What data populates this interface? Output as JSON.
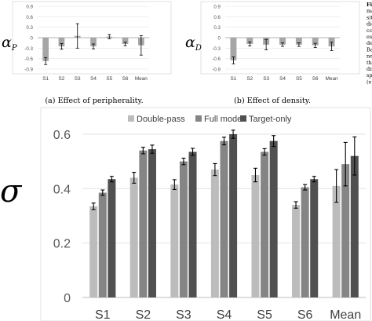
{
  "chart_data": [
    {
      "type": "bar",
      "ylabel": "αP",
      "categories": [
        "S1",
        "S2",
        "S3",
        "S4",
        "S5",
        "S6",
        "Mean"
      ],
      "ylim": [
        -0.9,
        0.9
      ],
      "yticks": [
        "0.9",
        "0.6",
        "0.3",
        "0",
        "-0.3",
        "-0.6",
        "-0.9"
      ],
      "values": [
        -0.67,
        -0.25,
        0.05,
        -0.25,
        0.03,
        -0.18,
        -0.22
      ],
      "err": [
        0.1,
        0.08,
        0.35,
        0.07,
        0.06,
        0.05,
        0.28
      ],
      "caption": "(a) Effect of peripherality."
    },
    {
      "type": "bar",
      "ylabel": "αD",
      "categories": [
        "S1",
        "S2",
        "S3",
        "S4",
        "S5",
        "S6",
        "Mean"
      ],
      "ylim": [
        -0.9,
        0.9
      ],
      "yticks": [
        "0.9",
        "0.6",
        "0.3",
        "0",
        "-0.3",
        "-0.6",
        "-0.9"
      ],
      "values": [
        -0.65,
        -0.18,
        -0.2,
        -0.2,
        -0.2,
        -0.22,
        -0.25
      ],
      "err": [
        0.1,
        0.06,
        0.15,
        0.05,
        0.05,
        0.06,
        0.12
      ],
      "caption": "(b) Effect of density."
    },
    {
      "type": "bar",
      "ylabel": "σ",
      "categories": [
        "S1",
        "S2",
        "S3",
        "S4",
        "S5",
        "S6",
        "Mean"
      ],
      "ylim": [
        0,
        0.65
      ],
      "yticks": [
        "0.6",
        "0.4",
        "0.2",
        "0"
      ],
      "series": [
        {
          "name": "Double-pass",
          "color": "#bcbcbc",
          "values": [
            0.335,
            0.44,
            0.415,
            0.47,
            0.45,
            0.34,
            0.41
          ],
          "err": [
            0.012,
            0.02,
            0.018,
            0.022,
            0.025,
            0.012,
            0.06
          ]
        },
        {
          "name": "Full model",
          "color": "#858585",
          "values": [
            0.385,
            0.54,
            0.5,
            0.575,
            0.535,
            0.405,
            0.49
          ],
          "err": [
            0.01,
            0.012,
            0.012,
            0.014,
            0.012,
            0.01,
            0.08
          ]
        },
        {
          "name": "Target-only",
          "color": "#505050",
          "values": [
            0.435,
            0.545,
            0.535,
            0.6,
            0.575,
            0.435,
            0.52
          ],
          "err": [
            0.01,
            0.015,
            0.013,
            0.015,
            0.02,
            0.01,
            0.07
          ]
        }
      ]
    }
  ],
  "side_text": [
    "Fi",
    "ma",
    "sit",
    "dia",
    "cc",
    "es",
    "de",
    "Ba",
    "ne",
    "th",
    "dis",
    "sp",
    "(e"
  ]
}
